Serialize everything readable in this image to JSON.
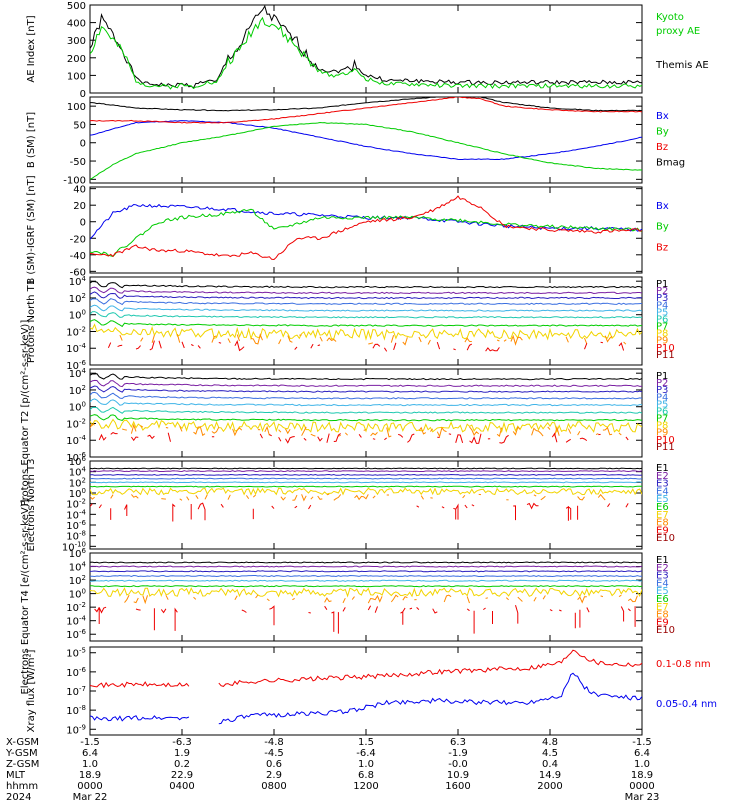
{
  "chart_data": [
    {
      "type": "line",
      "ylabel": "AE Index [nT]",
      "yticks": [
        "0",
        "100",
        "200",
        "300",
        "400",
        "500"
      ],
      "ylim": [
        0,
        500
      ],
      "legend": [
        {
          "label": "Kyoto",
          "color": "#00cc00"
        },
        {
          "label": "proxy AE",
          "color": "#00cc00"
        },
        {
          "label": "Themis AE",
          "color": "#000000"
        }
      ],
      "series": [
        {
          "name": "Themis AE",
          "color": "#000000",
          "x": [
            0,
            0.5,
            1,
            1.5,
            2,
            2.5,
            3,
            3.5,
            4,
            4.5,
            5,
            5.5,
            6,
            6.5,
            7,
            7.5,
            8,
            8.5,
            9,
            9.5,
            10,
            10.5,
            11,
            11.5,
            12,
            13,
            14,
            16,
            18,
            20,
            22,
            24
          ],
          "y": [
            250,
            420,
            330,
            230,
            80,
            50,
            50,
            40,
            50,
            40,
            70,
            60,
            200,
            260,
            380,
            480,
            420,
            350,
            290,
            200,
            140,
            120,
            130,
            160,
            100,
            70,
            70,
            60,
            60,
            60,
            60,
            60
          ]
        },
        {
          "name": "Kyoto proxy AE",
          "color": "#00cc00",
          "x": [
            0,
            0.5,
            1,
            1.5,
            2,
            2.5,
            3,
            3.5,
            4,
            4.5,
            5,
            5.5,
            6,
            6.5,
            7,
            7.5,
            8,
            8.5,
            9,
            9.5,
            10,
            10.5,
            11,
            11.5,
            12,
            13,
            14,
            16,
            18,
            20,
            22,
            24
          ],
          "y": [
            230,
            380,
            300,
            210,
            70,
            45,
            40,
            35,
            45,
            35,
            60,
            55,
            180,
            240,
            350,
            420,
            390,
            320,
            260,
            180,
            120,
            100,
            110,
            130,
            80,
            50,
            50,
            40,
            40,
            40,
            40,
            40
          ]
        }
      ]
    },
    {
      "type": "line",
      "ylabel": "B (SM) [nT]",
      "yticks": [
        "-100",
        "-50",
        "0",
        "50",
        "100"
      ],
      "ylim": [
        -110,
        125
      ],
      "legend": [
        {
          "label": "Bx",
          "color": "#0000ee"
        },
        {
          "label": "By",
          "color": "#00cc00"
        },
        {
          "label": "Bz",
          "color": "#ee0000"
        },
        {
          "label": "Bmag",
          "color": "#000000"
        }
      ],
      "series": [
        {
          "name": "Bx",
          "color": "#0000ee",
          "x": [
            0,
            2,
            4,
            6,
            8,
            10,
            12,
            14,
            16,
            18,
            20,
            22,
            24
          ],
          "y": [
            20,
            55,
            60,
            55,
            40,
            15,
            -10,
            -30,
            -45,
            -45,
            -30,
            -10,
            15
          ]
        },
        {
          "name": "By",
          "color": "#00cc00",
          "x": [
            0,
            1,
            2,
            4,
            6,
            8,
            10,
            12,
            14,
            16,
            18,
            20,
            22,
            24
          ],
          "y": [
            -100,
            -60,
            -30,
            0,
            20,
            45,
            55,
            50,
            30,
            0,
            -30,
            -55,
            -70,
            -75
          ]
        },
        {
          "name": "Bz",
          "color": "#ee0000",
          "x": [
            0,
            2,
            4,
            6,
            8,
            10,
            12,
            14,
            16,
            17,
            18,
            20,
            22,
            24
          ],
          "y": [
            60,
            60,
            55,
            55,
            65,
            80,
            95,
            110,
            125,
            120,
            100,
            90,
            85,
            85
          ]
        },
        {
          "name": "Bmag",
          "color": "#000000",
          "x": [
            0,
            2,
            4,
            6,
            8,
            10,
            12,
            14,
            16,
            17,
            18,
            20,
            22,
            24
          ],
          "y": [
            110,
            95,
            90,
            88,
            90,
            95,
            110,
            120,
            130,
            125,
            110,
            95,
            88,
            88
          ]
        }
      ]
    },
    {
      "type": "line",
      "ylabel": "B (SM)-IGRF (SM) [nT]",
      "yticks": [
        "-60",
        "-40",
        "-20",
        "0",
        "20",
        "40"
      ],
      "ylim": [
        -62,
        42
      ],
      "legend": [
        {
          "label": "Bx",
          "color": "#0000ee"
        },
        {
          "label": "By",
          "color": "#00cc00"
        },
        {
          "label": "Bz",
          "color": "#ee0000"
        }
      ],
      "series": [
        {
          "name": "Bx",
          "color": "#0000ee",
          "x": [
            0,
            1,
            2,
            4,
            6,
            8,
            10,
            12,
            14,
            16,
            18,
            20,
            22,
            24
          ],
          "y": [
            -20,
            10,
            20,
            18,
            15,
            10,
            8,
            5,
            5,
            0,
            -5,
            -8,
            -8,
            -10
          ]
        },
        {
          "name": "By",
          "color": "#00cc00",
          "x": [
            0,
            1,
            2,
            3,
            4,
            6,
            7,
            8,
            10,
            12,
            14,
            16,
            18,
            20,
            22,
            24
          ],
          "y": [
            -35,
            -40,
            -20,
            0,
            5,
            10,
            15,
            -10,
            5,
            5,
            5,
            2,
            -3,
            -6,
            -8,
            -10
          ]
        },
        {
          "name": "Bz",
          "color": "#ee0000",
          "x": [
            0,
            1,
            2,
            3,
            4,
            6,
            7,
            8,
            9,
            10,
            12,
            14,
            15,
            16,
            17,
            18,
            20,
            22,
            24
          ],
          "y": [
            -40,
            -40,
            -30,
            -35,
            -35,
            -42,
            -38,
            -45,
            -20,
            -20,
            0,
            5,
            15,
            30,
            18,
            -5,
            -10,
            -12,
            -10
          ]
        }
      ]
    },
    {
      "type": "line",
      "ylabel": "Protons North T1",
      "log_scale": true,
      "yticks": [
        "10^-6",
        "10^-4",
        "10^-2",
        "10^0",
        "10^2",
        "10^4"
      ],
      "ylim_exp": [
        -6,
        4.5
      ],
      "legend": [
        {
          "label": "P1",
          "color": "#000000"
        },
        {
          "label": "P2",
          "color": "#7a1fa2"
        },
        {
          "label": "P3",
          "color": "#2b1fbf"
        },
        {
          "label": "P4",
          "color": "#3a6fe0"
        },
        {
          "label": "P5",
          "color": "#3fb4e8"
        },
        {
          "label": "P6",
          "color": "#1fc8b0"
        },
        {
          "label": "P7",
          "color": "#00cc00"
        },
        {
          "label": "P8",
          "color": "#f2d400"
        },
        {
          "label": "P9",
          "color": "#ff8a00"
        },
        {
          "label": "P10",
          "color": "#ee0000"
        },
        {
          "label": "P11",
          "color": "#990000"
        }
      ],
      "channel_log_levels": [
        3.3,
        2.6,
        2.0,
        1.3,
        0.5,
        -0.3,
        -1.3,
        -2.3,
        -3.0,
        -3.8,
        null
      ]
    },
    {
      "type": "line",
      "ylabel": "Protons Equator T2 [p/(cm²-s-sr-keV)]",
      "log_scale": true,
      "yticks": [
        "10^-6",
        "10^-4",
        "10^-2",
        "10^0",
        "10^2",
        "10^4"
      ],
      "ylim_exp": [
        -6,
        4.5
      ],
      "legend": [
        {
          "label": "P1",
          "color": "#000000"
        },
        {
          "label": "P2",
          "color": "#7a1fa2"
        },
        {
          "label": "P3",
          "color": "#2b1fbf"
        },
        {
          "label": "P4",
          "color": "#3a6fe0"
        },
        {
          "label": "P5",
          "color": "#3fb4e8"
        },
        {
          "label": "P6",
          "color": "#1fc8b0"
        },
        {
          "label": "P7",
          "color": "#00cc00"
        },
        {
          "label": "P8",
          "color": "#f2d400"
        },
        {
          "label": "P9",
          "color": "#ff8a00"
        },
        {
          "label": "P10",
          "color": "#ee0000"
        },
        {
          "label": "P11",
          "color": "#990000"
        }
      ],
      "channel_log_levels": [
        3.3,
        2.5,
        1.8,
        1.0,
        0.2,
        -0.7,
        -1.6,
        -2.4,
        -3.0,
        -3.8,
        null
      ]
    },
    {
      "type": "line",
      "ylabel": "Electrons North T3",
      "log_scale": true,
      "yticks": [
        "10^-10",
        "10^-8",
        "10^-6",
        "10^-4",
        "10^-2",
        "10^0",
        "10^2",
        "10^4",
        "10^6"
      ],
      "ylim_exp": [
        -10.5,
        6
      ],
      "legend": [
        {
          "label": "E1",
          "color": "#000000"
        },
        {
          "label": "E2",
          "color": "#7a1fa2"
        },
        {
          "label": "E3",
          "color": "#2b1fbf"
        },
        {
          "label": "E4",
          "color": "#3a6fe0"
        },
        {
          "label": "E5",
          "color": "#3fb4e8"
        },
        {
          "label": "E6",
          "color": "#00cc00"
        },
        {
          "label": "E7",
          "color": "#f2d400"
        },
        {
          "label": "E8",
          "color": "#ff8a00"
        },
        {
          "label": "E9",
          "color": "#ee0000"
        },
        {
          "label": "E10",
          "color": "#990000"
        }
      ],
      "channel_log_levels": [
        4.6,
        4.1,
        3.4,
        2.7,
        2.0,
        1.2,
        0.3,
        -0.8,
        -2.5,
        null
      ]
    },
    {
      "type": "line",
      "ylabel": "Electrons Equator T4 [e/(cm²-s-sr-keV)]",
      "log_scale": true,
      "yticks": [
        "10^-6",
        "10^-4",
        "10^-2",
        "10^0",
        "10^2",
        "10^4",
        "10^6"
      ],
      "ylim_exp": [
        -7,
        6
      ],
      "legend": [
        {
          "label": "E1",
          "color": "#000000"
        },
        {
          "label": "E2",
          "color": "#7a1fa2"
        },
        {
          "label": "E3",
          "color": "#2b1fbf"
        },
        {
          "label": "E4",
          "color": "#3a6fe0"
        },
        {
          "label": "E5",
          "color": "#3fb4e8"
        },
        {
          "label": "E6",
          "color": "#00cc00"
        },
        {
          "label": "E7",
          "color": "#f2d400"
        },
        {
          "label": "E8",
          "color": "#ff8a00"
        },
        {
          "label": "E9",
          "color": "#ee0000"
        },
        {
          "label": "E10",
          "color": "#990000"
        }
      ],
      "channel_log_levels": [
        4.6,
        4.0,
        3.3,
        2.6,
        1.9,
        1.1,
        0.2,
        -0.8,
        -2.3,
        null
      ]
    },
    {
      "type": "line",
      "ylabel": "Xray flux [W/m²]",
      "log_scale": true,
      "yticks": [
        "10^-9",
        "10^-8",
        "10^-7",
        "10^-6",
        "10^-5"
      ],
      "ylim_exp": [
        -9.3,
        -4.7
      ],
      "legend": [
        {
          "label": "0.1-0.8 nm",
          "color": "#ee0000"
        },
        {
          "label": "0.05-0.4 nm",
          "color": "#0000ee"
        }
      ],
      "series": [
        {
          "name": "0.1-0.8 nm",
          "color": "#ee0000",
          "x": [
            0,
            0.5,
            2,
            4,
            5,
            5.6,
            7,
            9,
            11,
            13,
            15,
            17,
            19,
            20.5,
            21,
            21.5,
            22,
            23,
            24
          ],
          "y": [
            -6.6,
            -6.7,
            -6.65,
            -6.7,
            -6.7,
            -6.7,
            -6.5,
            -6.4,
            -6.3,
            -6.2,
            -6.0,
            -5.9,
            -5.8,
            -5.5,
            -4.8,
            -5.2,
            -5.5,
            -5.6,
            -5.6
          ]
        },
        {
          "name": "0.05-0.4 nm",
          "color": "#0000ee",
          "x": [
            0,
            0.5,
            2,
            4,
            5,
            5.6,
            7,
            9,
            11,
            13,
            15,
            17,
            19,
            20.5,
            21,
            21.5,
            22,
            23,
            24
          ],
          "y": [
            -8.4,
            -8.5,
            -8.4,
            -8.4,
            -8.5,
            -8.6,
            -8.3,
            -8.2,
            -8.1,
            -7.6,
            -7.5,
            -7.6,
            -7.6,
            -7.2,
            -6.0,
            -6.8,
            -7.2,
            -7.3,
            -7.4
          ]
        }
      ]
    }
  ],
  "xaxis": {
    "row_labels": [
      "X-GSM",
      "Y-GSM",
      "Z-GSM",
      "MLT",
      "hhmm",
      "2024"
    ],
    "columns": [
      [
        "-1.5",
        "-6.3",
        "-4.8",
        "1.5",
        "6.3",
        "4.8",
        "-1.5"
      ],
      [
        "6.4",
        "1.9",
        "-4.5",
        "-6.4",
        "-1.9",
        "4.5",
        "6.4"
      ],
      [
        "1.0",
        "0.2",
        "0.6",
        "1.0",
        "-0.0",
        "0.4",
        "1.0"
      ],
      [
        "18.9",
        "22.9",
        "2.9",
        "6.8",
        "10.9",
        "14.9",
        "18.9"
      ],
      [
        "0000",
        "0400",
        "0800",
        "1200",
        "1600",
        "2000",
        "0000"
      ],
      [
        "Mar 22",
        "",
        "",
        "",
        "",
        "",
        "Mar 23"
      ]
    ],
    "hours": [
      0,
      4,
      8,
      12,
      16,
      20,
      24
    ]
  }
}
